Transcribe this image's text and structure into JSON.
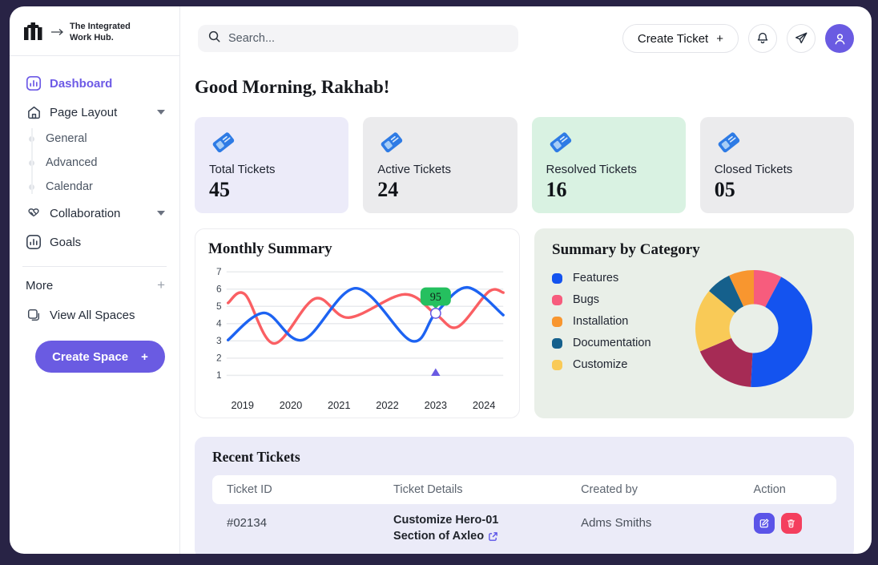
{
  "app": {
    "frame_color": "#282345",
    "accent_color": "#6a5be2"
  },
  "sidebar": {
    "logo": {
      "line1": "The Integrated",
      "line2": "Work Hub."
    },
    "dashboard_label": "Dashboard",
    "page_layout_label": "Page Layout",
    "sub_items": [
      {
        "label": "General"
      },
      {
        "label": "Advanced"
      },
      {
        "label": "Calendar"
      }
    ],
    "collaboration_label": "Collaboration",
    "goals_label": "Goals",
    "more_label": "More",
    "more_plus": "+",
    "view_all_label": "View All Spaces",
    "create_space_label": "Create Space",
    "create_space_plus": "+"
  },
  "topbar": {
    "search_placeholder": "Search...",
    "create_ticket_label": "Create Ticket",
    "create_ticket_plus": "+"
  },
  "main": {
    "greeting": "Good Morning, Rakhab!",
    "stats": [
      {
        "label": "Total Tickets",
        "value": "45",
        "bg": "#ecebf9"
      },
      {
        "label": "Active Tickets",
        "value": "24",
        "bg": "#ebebed"
      },
      {
        "label": "Resolved Tickets",
        "value": "16",
        "bg": "#d9f2e2"
      },
      {
        "label": "Closed Tickets",
        "value": "05",
        "bg": "#ebebed"
      }
    ]
  },
  "chart_data": [
    {
      "type": "line",
      "title": "Monthly Summary",
      "xlabel": "",
      "ylabel": "",
      "xlim": [
        2018.7,
        2024.4
      ],
      "ylim": [
        1,
        7
      ],
      "x_ticks": [
        2019,
        2020,
        2021,
        2022,
        2023,
        2024
      ],
      "y_ticks": [
        1,
        2,
        3,
        4,
        5,
        6,
        7
      ],
      "grid": "horizontal",
      "legend_position": "none",
      "series": [
        {
          "name": "red-series",
          "color": "#fa5f63",
          "points": [
            [
              2018.7,
              5.2
            ],
            [
              2019.05,
              5.7
            ],
            [
              2019.65,
              2.85
            ],
            [
              2020.5,
              5.45
            ],
            [
              2021.2,
              4.35
            ],
            [
              2022.35,
              5.7
            ],
            [
              2023.0,
              4.55
            ],
            [
              2023.45,
              3.8
            ],
            [
              2024.1,
              5.85
            ],
            [
              2024.4,
              5.8
            ]
          ]
        },
        {
          "name": "blue-series",
          "color": "#1d63f2",
          "points": [
            [
              2018.7,
              3.05
            ],
            [
              2019.45,
              4.62
            ],
            [
              2020.25,
              3.05
            ],
            [
              2021.35,
              6.05
            ],
            [
              2022.5,
              3.0
            ],
            [
              2023.0,
              4.6
            ],
            [
              2023.65,
              6.1
            ],
            [
              2024.4,
              4.5
            ]
          ]
        }
      ],
      "annotations": {
        "tooltip": {
          "label": "95",
          "x": 2023,
          "y": 4.6,
          "bg": "#25c05f",
          "text_color": "#10241a"
        },
        "point_marker": {
          "x": 2023,
          "y": 4.6,
          "fill": "#ffffff",
          "ring_color": "#6a5be2"
        },
        "triangle_marker": {
          "x": 2023,
          "y": 1.1,
          "color": "#6a5be2"
        }
      }
    },
    {
      "type": "pie",
      "title": "Summary by Category",
      "donut": true,
      "legend_position": "left",
      "legend": [
        {
          "label": "Features",
          "color": "#1453ef"
        },
        {
          "label": "Bugs",
          "color": "#f75c7d"
        },
        {
          "label": "Installation",
          "color": "#f8962f"
        },
        {
          "label": "Documentation",
          "color": "#15608c"
        },
        {
          "label": "Customize",
          "color": "#f9ca57"
        }
      ],
      "segments": [
        {
          "label": "Bugs",
          "color": "#f75c7d",
          "deg": 28
        },
        {
          "label": "Features",
          "color": "#1453ef",
          "deg": 155
        },
        {
          "label": "",
          "color": "#a62b55",
          "deg": 64
        },
        {
          "label": "Customize",
          "color": "#f9ca57",
          "deg": 63
        },
        {
          "label": "Documentation",
          "color": "#15608c",
          "deg": 25
        },
        {
          "label": "Installation",
          "color": "#f8962f",
          "deg": 25
        }
      ]
    }
  ],
  "tickets": {
    "title": "Recent Tickets",
    "columns": [
      "Ticket ID",
      "Ticket Details",
      "Created by",
      "Action"
    ],
    "rows": [
      {
        "id": "#02134",
        "details_line1": "Customize Hero-01",
        "details_line2": "Section of Axleo",
        "created_by": "Adms Smiths"
      }
    ]
  }
}
